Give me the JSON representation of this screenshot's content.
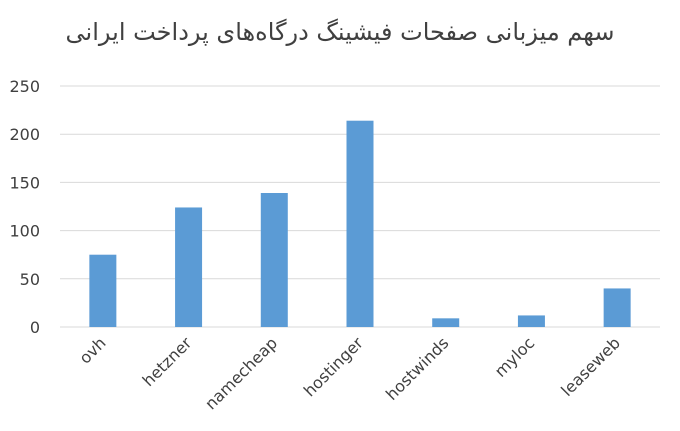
{
  "chart_data": {
    "type": "bar",
    "title": "سهم میزبانی صفحات فیشینگ درگاه‌های پرداخت ایرانی",
    "categories": [
      "ovh",
      "hetzner",
      "namecheap",
      "hostinger",
      "hostwinds",
      "myloc",
      "leaseweb"
    ],
    "series": [
      {
        "values": [
          75,
          124,
          139,
          214,
          9,
          12,
          40
        ]
      }
    ],
    "ylim": [
      0,
      250
    ],
    "yticks": [
      0,
      50,
      100,
      150,
      200,
      250
    ],
    "grid": true,
    "legend": "none",
    "bar_color": "#5B9BD5",
    "grid_color": "#D9D9D9",
    "text_color": "#404040"
  }
}
